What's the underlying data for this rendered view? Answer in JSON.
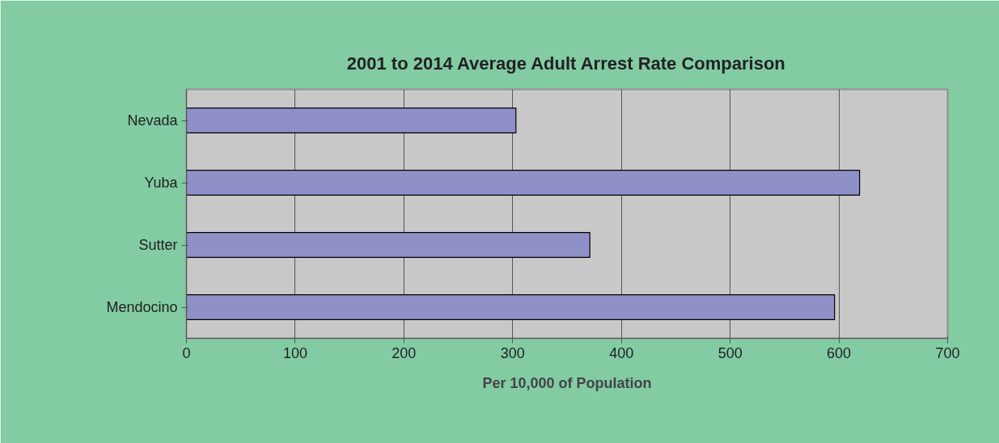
{
  "chart_data": {
    "type": "bar",
    "orientation": "horizontal",
    "title": "2001 to 2014 Average Adult Arrest Rate Comparison",
    "xlabel": "Per 10,000 of Population",
    "categories": [
      "Nevada",
      "Yuba",
      "Sutter",
      "Mendocino"
    ],
    "values": [
      303,
      619,
      371,
      596
    ],
    "color": "#9090c8",
    "xlim": [
      0,
      700
    ],
    "xticks": [
      0,
      100,
      200,
      300,
      400,
      500,
      600,
      700
    ],
    "grid": "x"
  }
}
